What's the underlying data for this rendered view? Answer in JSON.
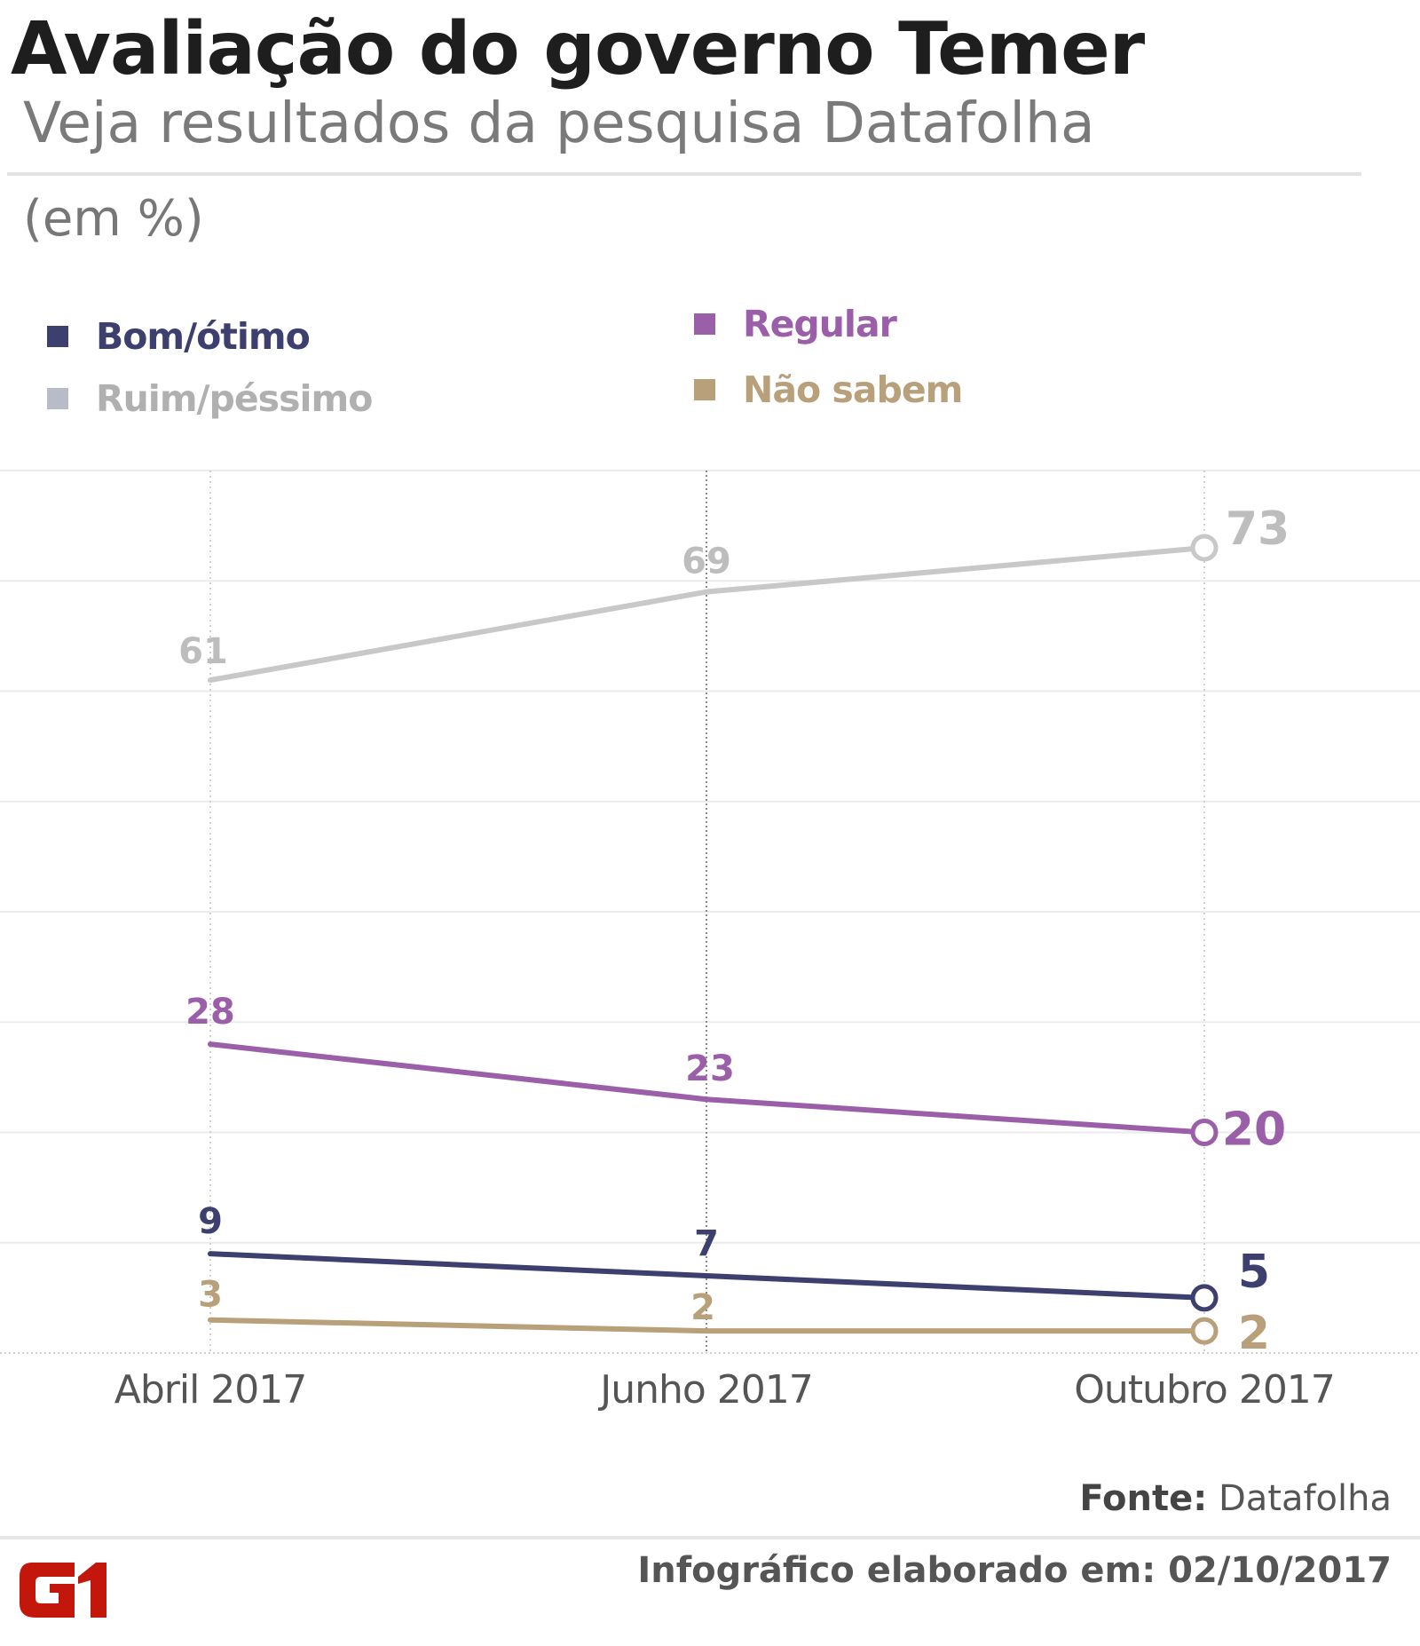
{
  "header": {
    "title": "Avaliação do governo Temer",
    "subtitle": "Veja resultados da pesquisa Datafolha",
    "unit": "(em %)"
  },
  "legend": [
    {
      "label": "Bom/ótimo",
      "color": "#3d3f6e"
    },
    {
      "label": "Ruim/péssimo",
      "color": "#b8bcc8"
    },
    {
      "label": "Regular",
      "color": "#9b5ea8"
    },
    {
      "label": "Não sabem",
      "color": "#b8a07a"
    }
  ],
  "footer": {
    "source_label": "Fonte:",
    "source_value": "Datafolha",
    "made_on": "Infográfico elaborado em: 02/10/2017",
    "logo": "G1"
  },
  "chart_data": {
    "type": "line",
    "title": "Avaliação do governo Temer",
    "subtitle": "Veja resultados da pesquisa Datafolha",
    "ylabel": "(em %)",
    "xlabel": "",
    "categories": [
      "Abril 2017",
      "Junho 2017",
      "Outubro 2017"
    ],
    "ylim": [
      0,
      80
    ],
    "y_grid_step": 10,
    "grid": true,
    "legend_position": "top",
    "series": [
      {
        "name": "Ruim/péssimo",
        "color": "#c8c8c8",
        "label_color": "#bdbdbd",
        "values": [
          61,
          69,
          73
        ]
      },
      {
        "name": "Regular",
        "color": "#9b5ea8",
        "label_color": "#9b5ea8",
        "values": [
          28,
          23,
          20
        ]
      },
      {
        "name": "Bom/ótimo",
        "color": "#3d3f6e",
        "label_color": "#3d3f6e",
        "values": [
          9,
          7,
          5
        ]
      },
      {
        "name": "Não sabem",
        "color": "#b8a07a",
        "label_color": "#b8a07a",
        "values": [
          3,
          2,
          2
        ]
      }
    ]
  }
}
